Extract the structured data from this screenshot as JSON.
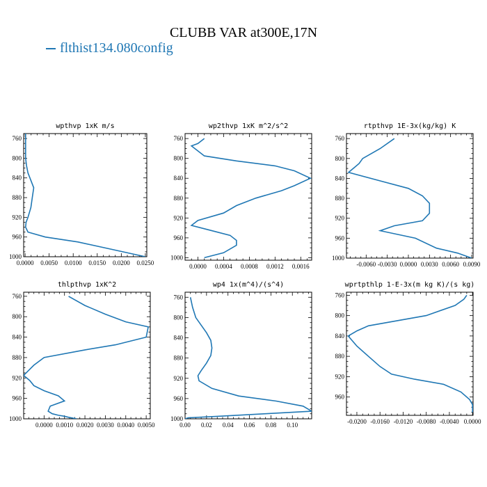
{
  "figure": {
    "title": "CLUBB VAR at300E,17N",
    "legend_label": "flthist134.080config",
    "series_color": "#1f77b4"
  },
  "chart_data": [
    {
      "type": "line",
      "title": "wpthvp  1xK m/s",
      "y_ticks": [
        760,
        800,
        840,
        880,
        920,
        960,
        1000
      ],
      "x_ticks": [
        "0.0000",
        "0.0050",
        "0.0100",
        "0.0150",
        "0.0200",
        "0.0250"
      ],
      "xlim": [
        -0.0003,
        0.0253
      ],
      "ylim": [
        750,
        1000
      ],
      "series": [
        {
          "x": [
            0.0001,
            0.0001,
            0.0001,
            0.0003,
            0.0006,
            0.0012,
            0.0018,
            0.0015,
            0.0012,
            0.0006,
            0.0002,
            0.0001,
            0.0006,
            0.0042,
            0.011,
            0.018,
            0.025
          ],
          "y": [
            750,
            770,
            800,
            815,
            830,
            845,
            860,
            880,
            900,
            920,
            930,
            940,
            950,
            960,
            970,
            985,
            1000
          ]
        }
      ]
    },
    {
      "type": "line",
      "title": "wp2thvp  1xK m^2/s^2",
      "y_ticks": [
        760,
        800,
        840,
        880,
        920,
        960,
        1000
      ],
      "x_ticks": [
        "0.0000",
        "0.0004",
        "0.0008",
        "0.0012",
        "0.0016"
      ],
      "xlim": [
        -0.0002,
        0.00177
      ],
      "ylim": [
        750,
        1005
      ],
      "series": [
        {
          "x": [
            0.0001,
            0.0,
            -0.0001,
            0.0001,
            0.0006,
            0.0012,
            0.0015,
            0.00175,
            0.0015,
            0.0013,
            0.0009,
            0.0006,
            0.0004,
            0.0,
            -0.0001,
            0.0002,
            0.0005,
            0.0006,
            0.0006,
            0.0004,
            0.0001
          ],
          "y": [
            760,
            770,
            775,
            795,
            805,
            815,
            825,
            840,
            855,
            865,
            880,
            895,
            910,
            925,
            935,
            945,
            955,
            965,
            975,
            990,
            1000
          ]
        }
      ]
    },
    {
      "type": "line",
      "title": "rtpthvp  1E-3x(kg/kg) K",
      "y_ticks": [
        760,
        800,
        840,
        880,
        920,
        960,
        1000
      ],
      "x_ticks": [
        "-0.0060",
        "-0.0030",
        "0.0000",
        "0.0030",
        "0.0060",
        "0.0090"
      ],
      "xlim": [
        -0.0088,
        0.0092
      ],
      "ylim": [
        750,
        1000
      ],
      "series": [
        {
          "x": [
            -0.002,
            -0.004,
            -0.0065,
            -0.007,
            -0.0085,
            -0.004,
            0.0,
            0.002,
            0.003,
            0.003,
            0.002,
            -0.002,
            -0.004,
            0.001,
            0.004,
            0.007,
            0.009
          ],
          "y": [
            760,
            780,
            800,
            810,
            828,
            845,
            860,
            875,
            890,
            910,
            925,
            935,
            945,
            960,
            980,
            990,
            1000
          ]
        }
      ]
    },
    {
      "type": "line",
      "title": "thlpthvp  1xK^2",
      "y_ticks": [
        760,
        800,
        840,
        880,
        920,
        960,
        1000
      ],
      "x_ticks": [
        "0.0000",
        "0.0010",
        "0.0020",
        "0.0030",
        "0.0040",
        "0.0050"
      ],
      "xlim": [
        -0.001,
        0.0052
      ],
      "ylim": [
        752,
        1000
      ],
      "series": [
        {
          "x": [
            0.0012,
            0.002,
            0.003,
            0.004,
            0.0051,
            0.005,
            0.0035,
            0.002,
            0.0,
            -0.0005,
            -0.001,
            -0.0007,
            -0.0005,
            0.0,
            0.0007,
            0.001,
            0.0003,
            0.0002,
            0.0004,
            0.0007,
            0.001,
            0.0012,
            0.0016
          ],
          "y": [
            760,
            778,
            795,
            810,
            820,
            840,
            855,
            865,
            880,
            895,
            915,
            925,
            935,
            945,
            955,
            965,
            975,
            985,
            990,
            993,
            995,
            997,
            1000
          ]
        }
      ]
    },
    {
      "type": "line",
      "title": "wp4  1x(m^4)/(s^4)",
      "y_ticks": [
        760,
        800,
        840,
        880,
        920,
        960,
        1000
      ],
      "x_ticks": [
        "0.00",
        "0.02",
        "0.04",
        "0.06",
        "0.08",
        "0.10"
      ],
      "xlim": [
        0.0,
        0.118
      ],
      "ylim": [
        750,
        1000
      ],
      "series": [
        {
          "x": [
            0.005,
            0.007,
            0.01,
            0.015,
            0.02,
            0.024,
            0.025,
            0.024,
            0.02,
            0.015,
            0.012,
            0.013,
            0.025,
            0.05,
            0.085,
            0.11,
            0.118,
            0.075,
            0.03,
            0.003,
            0.0
          ],
          "y": [
            760,
            780,
            800,
            815,
            830,
            845,
            860,
            875,
            890,
            905,
            915,
            925,
            940,
            955,
            965,
            975,
            985,
            990,
            995,
            998,
            1000
          ]
        }
      ]
    },
    {
      "type": "line",
      "title": "wprtpthlp  1-E-3x(m kg K)/(s kg)",
      "y_ticks": [
        760,
        800,
        840,
        880,
        920,
        960,
        1000
      ],
      "x_ticks": [
        "-0.0200",
        "-0.0160",
        "-0.0120",
        "-0.0080",
        "-0.0040",
        "0.0000"
      ],
      "xlim": [
        -0.0218,
        0.0001
      ],
      "ylim": [
        754,
        996
      ],
      "series": [
        {
          "x": [
            -0.001,
            -0.0015,
            -0.003,
            -0.008,
            -0.018,
            -0.02,
            -0.0215,
            -0.02,
            -0.018,
            -0.016,
            -0.014,
            -0.01,
            -0.005,
            -0.002,
            -0.0005,
            0.0,
            0.0
          ],
          "y": [
            760,
            768,
            780,
            800,
            820,
            830,
            840,
            860,
            880,
            900,
            915,
            925,
            935,
            950,
            965,
            975,
            990
          ]
        }
      ]
    }
  ]
}
